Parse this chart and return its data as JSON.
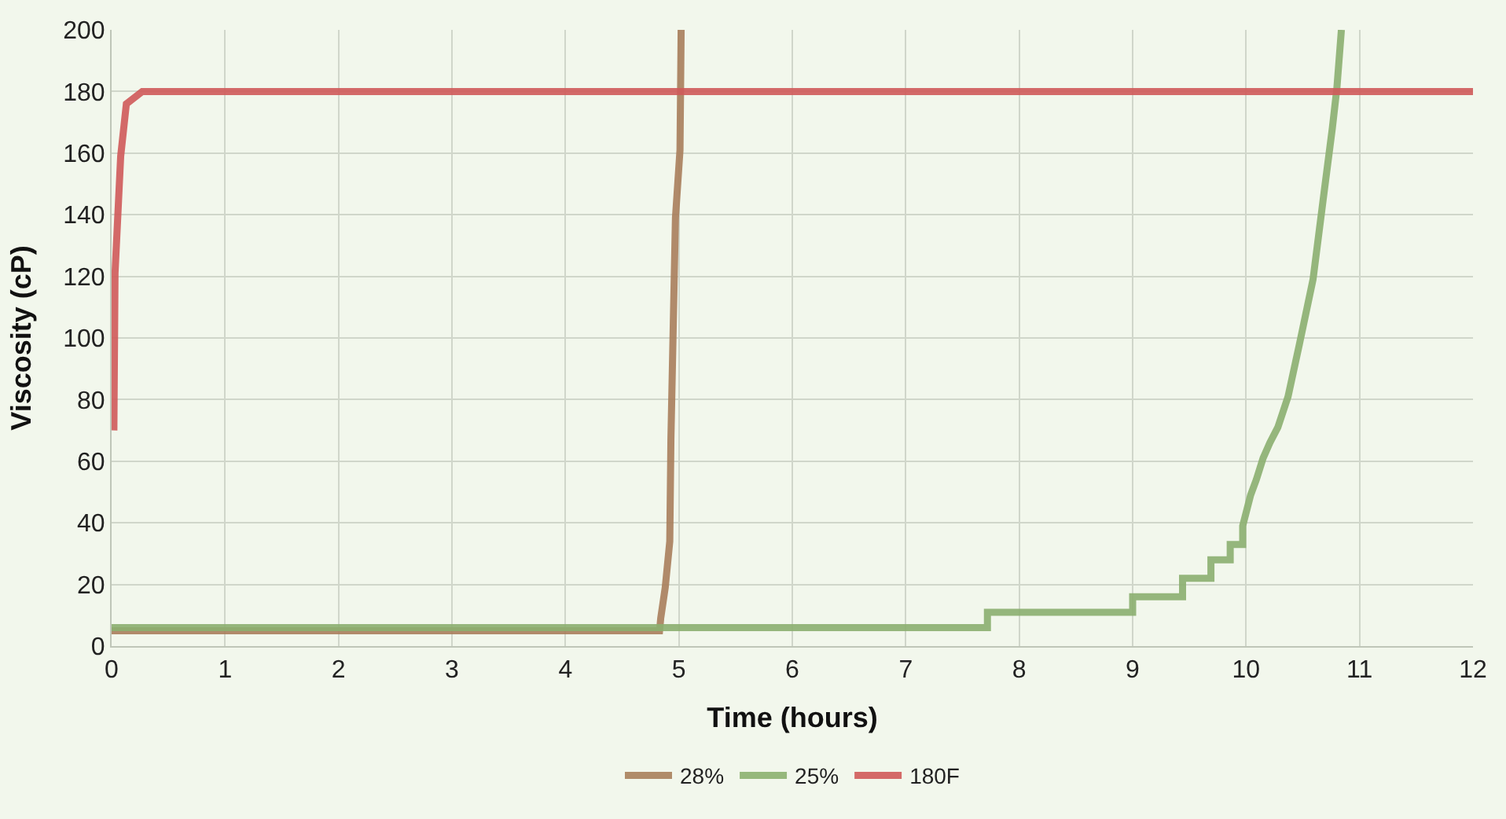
{
  "chart_data": {
    "type": "line",
    "xlabel": "Time (hours)",
    "ylabel": "Viscosity (cP)",
    "xlim": [
      0,
      12
    ],
    "ylim": [
      0,
      200
    ],
    "xticks": [
      0,
      1,
      2,
      3,
      4,
      5,
      6,
      7,
      8,
      9,
      10,
      11,
      12
    ],
    "yticks": [
      0,
      20,
      40,
      60,
      80,
      100,
      120,
      140,
      160,
      180,
      200
    ],
    "grid": true,
    "legend": "bottom",
    "marker": "none",
    "line_style": "solid",
    "series": [
      {
        "name": "28%",
        "color": "#a97f5c",
        "x": [
          0,
          4.83,
          4.84,
          4.88,
          4.92,
          4.93,
          4.97,
          5.01,
          5.02
        ],
        "values": [
          5,
          5,
          9,
          19,
          34,
          67,
          139,
          161,
          200
        ]
      },
      {
        "name": "25%",
        "color": "#8cb070",
        "x": [
          0,
          7.72,
          7.72,
          9.0,
          9.0,
          9.44,
          9.44,
          9.69,
          9.69,
          9.86,
          9.86,
          9.97,
          9.97,
          10.04,
          10.09,
          10.15,
          10.21,
          10.28,
          10.37,
          10.47,
          10.59,
          10.69,
          10.76,
          10.8,
          10.84
        ],
        "values": [
          6,
          6,
          11,
          11,
          16,
          16,
          22,
          22,
          28,
          28,
          33,
          33,
          39,
          49,
          54,
          61,
          66,
          71,
          81,
          98,
          119,
          148,
          168,
          181,
          200
        ]
      },
      {
        "name": "180F",
        "color": "#d05a5a",
        "x": [
          0.02,
          0.03,
          0.08,
          0.13,
          0.27,
          12
        ],
        "values": [
          70,
          121,
          159,
          176,
          180,
          180
        ]
      }
    ]
  }
}
